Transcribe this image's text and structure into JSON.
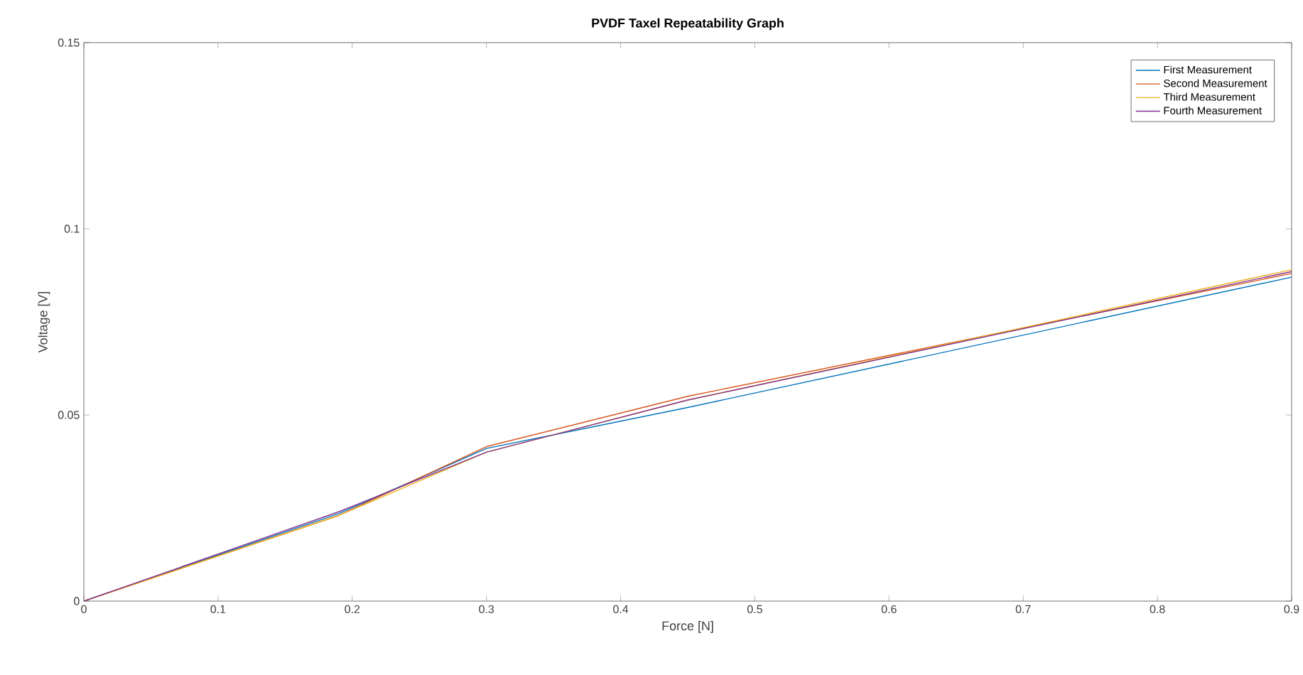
{
  "chart_data": {
    "type": "line",
    "title": "PVDF Taxel Repeatability Graph",
    "xlabel": "Force [N]",
    "ylabel": "Voltage [V]",
    "x": [
      0,
      0.19,
      0.3,
      0.45,
      0.9
    ],
    "series": [
      {
        "name": "First Measurement",
        "color": "#0072bd",
        "values": [
          0,
          0.0235,
          0.041,
          0.052,
          0.087
        ]
      },
      {
        "name": "Second Measurement",
        "color": "#d95319",
        "values": [
          0,
          0.023,
          0.0415,
          0.055,
          0.088
        ]
      },
      {
        "name": "Third Measurement",
        "color": "#edb120",
        "values": [
          0,
          0.023,
          0.04,
          0.054,
          0.089
        ]
      },
      {
        "name": "Fourth Measurement",
        "color": "#7e2f8e",
        "values": [
          0,
          0.024,
          0.04,
          0.054,
          0.0885
        ]
      }
    ],
    "xlim": [
      0,
      0.9
    ],
    "ylim": [
      0,
      0.15
    ],
    "xticks": [
      0,
      0.1,
      0.2,
      0.3,
      0.4,
      0.5,
      0.6,
      0.7,
      0.8,
      0.9
    ],
    "yticks": [
      0,
      0.05,
      0.1,
      0.15
    ],
    "legend": "top right",
    "grid": false
  }
}
